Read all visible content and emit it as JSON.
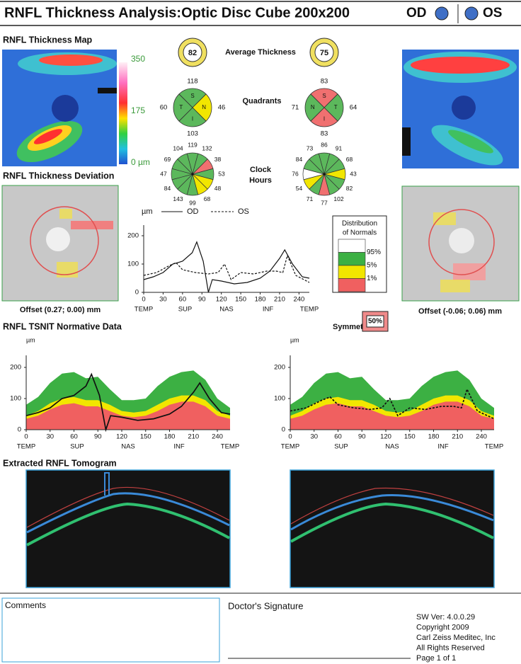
{
  "header": {
    "title": "RNFL Thickness Analysis:Optic Disc Cube 200x200",
    "od": "OD",
    "os": "OS"
  },
  "sections": {
    "map": "RNFL Thickness Map",
    "deviation": "RNFL Thickness Deviation",
    "tsnit": "RNFL TSNIT Normative Data",
    "tomogram": "Extracted RNFL Tomogram"
  },
  "color_bar": {
    "ticks": [
      350,
      175,
      {
        "value": 0,
        "label": "0 µm"
      }
    ]
  },
  "offsets": {
    "od": "Offset (0.27; 0.00) mm",
    "os": "Offset (-0.06; 0.06) mm"
  },
  "average_thickness": {
    "label": "Average Thickness",
    "od": 82,
    "os": 75
  },
  "quadrants": {
    "label": "Quadrants",
    "od": [
      {
        "letter": "S",
        "value": 118,
        "color": "#5cb85c"
      },
      {
        "letter": "N",
        "value": 46,
        "color": "#f2e600"
      },
      {
        "letter": "I",
        "value": 103,
        "color": "#5cb85c"
      },
      {
        "letter": "T",
        "value": 60,
        "color": "#5cb85c"
      }
    ],
    "os": [
      {
        "letter": "S",
        "value": 83,
        "color": "#f07070"
      },
      {
        "letter": "T",
        "value": 64,
        "color": "#5cb85c"
      },
      {
        "letter": "I",
        "value": 83,
        "color": "#f07070"
      },
      {
        "letter": "N",
        "value": 71,
        "color": "#5cb85c"
      }
    ]
  },
  "clock_hours": {
    "label_lines": [
      "Clock",
      "Hours"
    ],
    "od": {
      "values": [
        119,
        132,
        38,
        53,
        48,
        68,
        99,
        143,
        84,
        47,
        69,
        104
      ],
      "colors": [
        "#5cb85c",
        "#5cb85c",
        "#f07070",
        "#5cb85c",
        "#f2e600",
        "#f2e600",
        "#5cb85c",
        "#5cb85c",
        "#5cb85c",
        "#5cb85c",
        "#5cb85c",
        "#5cb85c"
      ]
    },
    "os": {
      "values": [
        86,
        91,
        68,
        43,
        82,
        102,
        77,
        71,
        54,
        76,
        84,
        73
      ],
      "colors": [
        "#5cb85c",
        "#5cb85c",
        "#5cb85c",
        "#f2e600",
        "#5cb85c",
        "#5cb85c",
        "#f07070",
        "#5cb85c",
        "#f2e600",
        "#ffffff",
        "#5cb85c",
        "#5cb85c"
      ]
    }
  },
  "distribution": {
    "title_lines": [
      "Distribution",
      "of Normals"
    ],
    "entries": [
      {
        "label": "95%",
        "color": "#ffffff"
      },
      {
        "label": "5%",
        "color": "#3cb043"
      },
      {
        "label": "1%",
        "color": "#f2e600"
      },
      {
        "label": null,
        "color": "#f06060"
      }
    ]
  },
  "symmetry": {
    "label": "Symmetry",
    "value": "50%"
  },
  "mid_chart": {
    "unit": "µm",
    "od_label": "OD",
    "os_label": "OS",
    "xlim": [
      0,
      256
    ],
    "ylim": [
      0,
      250
    ],
    "xticks": [
      0,
      30,
      60,
      90,
      120,
      150,
      180,
      210,
      240
    ],
    "yticks": [
      0,
      100,
      200
    ],
    "regions": [
      "TEMP",
      "SUP",
      "NAS",
      "INF",
      "TEMP"
    ]
  },
  "tsnit": {
    "unit": "µm",
    "xlim": [
      0,
      256
    ],
    "ylim": [
      0,
      250
    ],
    "xticks": [
      0,
      30,
      60,
      90,
      120,
      150,
      180,
      210,
      240
    ],
    "yticks": [
      0,
      100,
      200
    ],
    "regions": [
      "TEMP",
      "SUP",
      "NAS",
      "INF",
      "TEMP"
    ]
  },
  "curves": {
    "od": {
      "x": [
        0,
        15,
        30,
        45,
        60,
        75,
        82,
        92,
        100,
        106,
        120,
        140,
        160,
        180,
        195,
        210,
        218,
        230,
        245,
        256
      ],
      "values": [
        45,
        55,
        70,
        100,
        110,
        140,
        178,
        110,
        0,
        45,
        40,
        30,
        35,
        50,
        75,
        120,
        150,
        100,
        55,
        50
      ]
    },
    "os": {
      "x": [
        0,
        20,
        40,
        50,
        60,
        80,
        100,
        115,
        125,
        135,
        150,
        170,
        190,
        205,
        215,
        222,
        235,
        256
      ],
      "values": [
        60,
        70,
        95,
        105,
        80,
        70,
        65,
        70,
        100,
        45,
        70,
        65,
        75,
        75,
        70,
        130,
        60,
        35
      ]
    },
    "norms": {
      "x": [
        0,
        15,
        30,
        45,
        60,
        75,
        90,
        105,
        120,
        135,
        150,
        165,
        180,
        195,
        210,
        225,
        240,
        256
      ],
      "p95": [
        80,
        105,
        150,
        180,
        185,
        165,
        170,
        130,
        95,
        95,
        100,
        140,
        170,
        185,
        190,
        160,
        100,
        70
      ],
      "p5": [
        45,
        60,
        85,
        100,
        105,
        95,
        95,
        80,
        60,
        55,
        60,
        80,
        100,
        110,
        110,
        95,
        60,
        45
      ],
      "p1": [
        35,
        45,
        65,
        80,
        85,
        75,
        75,
        60,
        45,
        40,
        45,
        60,
        80,
        90,
        90,
        75,
        45,
        35
      ]
    }
  },
  "footer": {
    "comments": "Comments",
    "signature": "Doctor's Signature",
    "info": [
      "SW Ver: 4.0.0.29",
      "Copyright 2009",
      "Carl Zeiss Meditec, Inc",
      "All Rights Reserved",
      "Page 1 of 1"
    ]
  }
}
